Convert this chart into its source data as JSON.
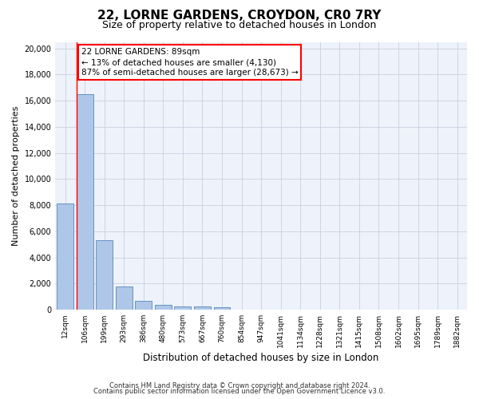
{
  "title1": "22, LORNE GARDENS, CROYDON, CR0 7RY",
  "title2": "Size of property relative to detached houses in London",
  "xlabel": "Distribution of detached houses by size in London",
  "ylabel": "Number of detached properties",
  "bar_values": [
    8100,
    16500,
    5300,
    1800,
    650,
    350,
    270,
    220,
    175,
    0,
    0,
    0,
    0,
    0,
    0,
    0,
    0,
    0,
    0,
    0,
    0
  ],
  "bar_labels": [
    "12sqm",
    "106sqm",
    "199sqm",
    "293sqm",
    "386sqm",
    "480sqm",
    "573sqm",
    "667sqm",
    "760sqm",
    "854sqm",
    "947sqm",
    "1041sqm",
    "1134sqm",
    "1228sqm",
    "1321sqm",
    "1415sqm",
    "1508sqm",
    "1602sqm",
    "1695sqm",
    "1789sqm",
    "1882sqm"
  ],
  "bar_color": "#aec6e8",
  "bar_edge_color": "#5588bb",
  "grid_color": "#c8d0e0",
  "annotation_text_line1": "22 LORNE GARDENS: 89sqm",
  "annotation_text_line2": "← 13% of detached houses are smaller (4,130)",
  "annotation_text_line3": "87% of semi-detached houses are larger (28,673) →",
  "vline_x": 0.5,
  "ylim": [
    0,
    20500
  ],
  "yticks": [
    0,
    2000,
    4000,
    6000,
    8000,
    10000,
    12000,
    14000,
    16000,
    18000,
    20000
  ],
  "footer1": "Contains HM Land Registry data © Crown copyright and database right 2024.",
  "footer2": "Contains public sector information licensed under the Open Government Licence v3.0.",
  "bg_color": "#eef2fa",
  "title_fontsize": 11,
  "subtitle_fontsize": 9,
  "ylabel_fontsize": 8,
  "xlabel_fontsize": 8.5,
  "tick_fontsize": 7,
  "footer_fontsize": 6,
  "annot_fontsize": 7.5
}
